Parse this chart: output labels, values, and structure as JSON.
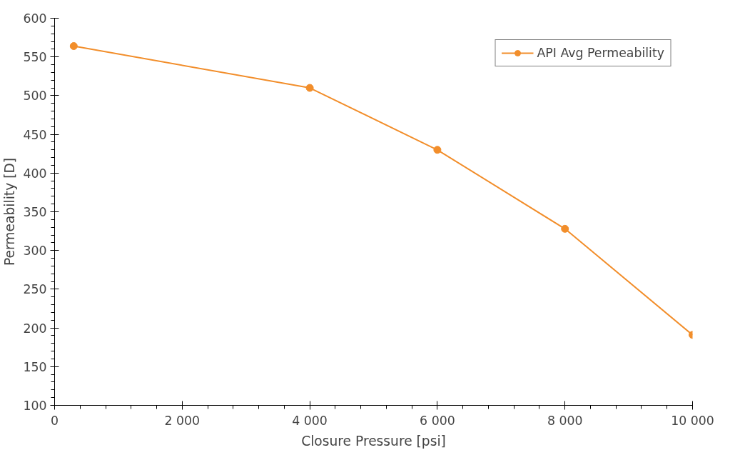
{
  "chart_data": {
    "type": "line",
    "xlabel": "Closure Pressure [psi]",
    "ylabel": "Permeability [D]",
    "x": [
      300,
      4000,
      6000,
      8000,
      10000
    ],
    "series": [
      {
        "name": "API Avg Permeability",
        "color": "#f28e2b",
        "values": [
          564,
          510,
          430,
          328,
          191
        ]
      }
    ],
    "xlim": [
      0,
      10000
    ],
    "xticks": [
      0,
      {
        "value": 2000,
        "label": "2 000"
      },
      {
        "value": 4000,
        "label": "4 000"
      },
      {
        "value": 6000,
        "label": "6 000"
      },
      {
        "value": 8000,
        "label": "8 000"
      },
      {
        "value": 10000,
        "label": "10 000"
      }
    ],
    "ylim": [
      100,
      600
    ],
    "yticks": [
      100,
      150,
      200,
      250,
      300,
      350,
      400,
      450,
      500,
      550,
      600
    ],
    "grid": false,
    "legend": "top right",
    "marker": "circle",
    "line_style": "solid"
  }
}
